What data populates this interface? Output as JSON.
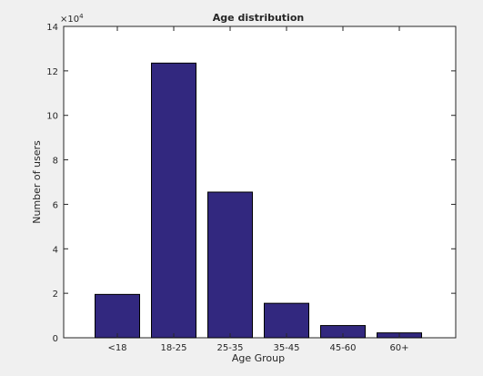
{
  "chart_data": {
    "type": "bar",
    "title": "Age distribution",
    "xlabel": "Age Group",
    "ylabel": "Number of users",
    "categories": [
      "<18",
      "18-25",
      "25-35",
      "35-45",
      "45-60",
      "60+"
    ],
    "values": [
      19500,
      123500,
      65500,
      15500,
      5500,
      2200
    ],
    "ylim": [
      0,
      140000
    ],
    "yticks": [
      0,
      20000,
      40000,
      60000,
      80000,
      100000,
      120000,
      140000
    ],
    "ytick_labels": [
      "0",
      "2",
      "4",
      "6",
      "8",
      "10",
      "12",
      "14"
    ],
    "y_multiplier_base": "×10",
    "y_multiplier_exponent": "4",
    "grid": false,
    "bar_color": "#32287f",
    "bar_edge_color": "#000000"
  }
}
